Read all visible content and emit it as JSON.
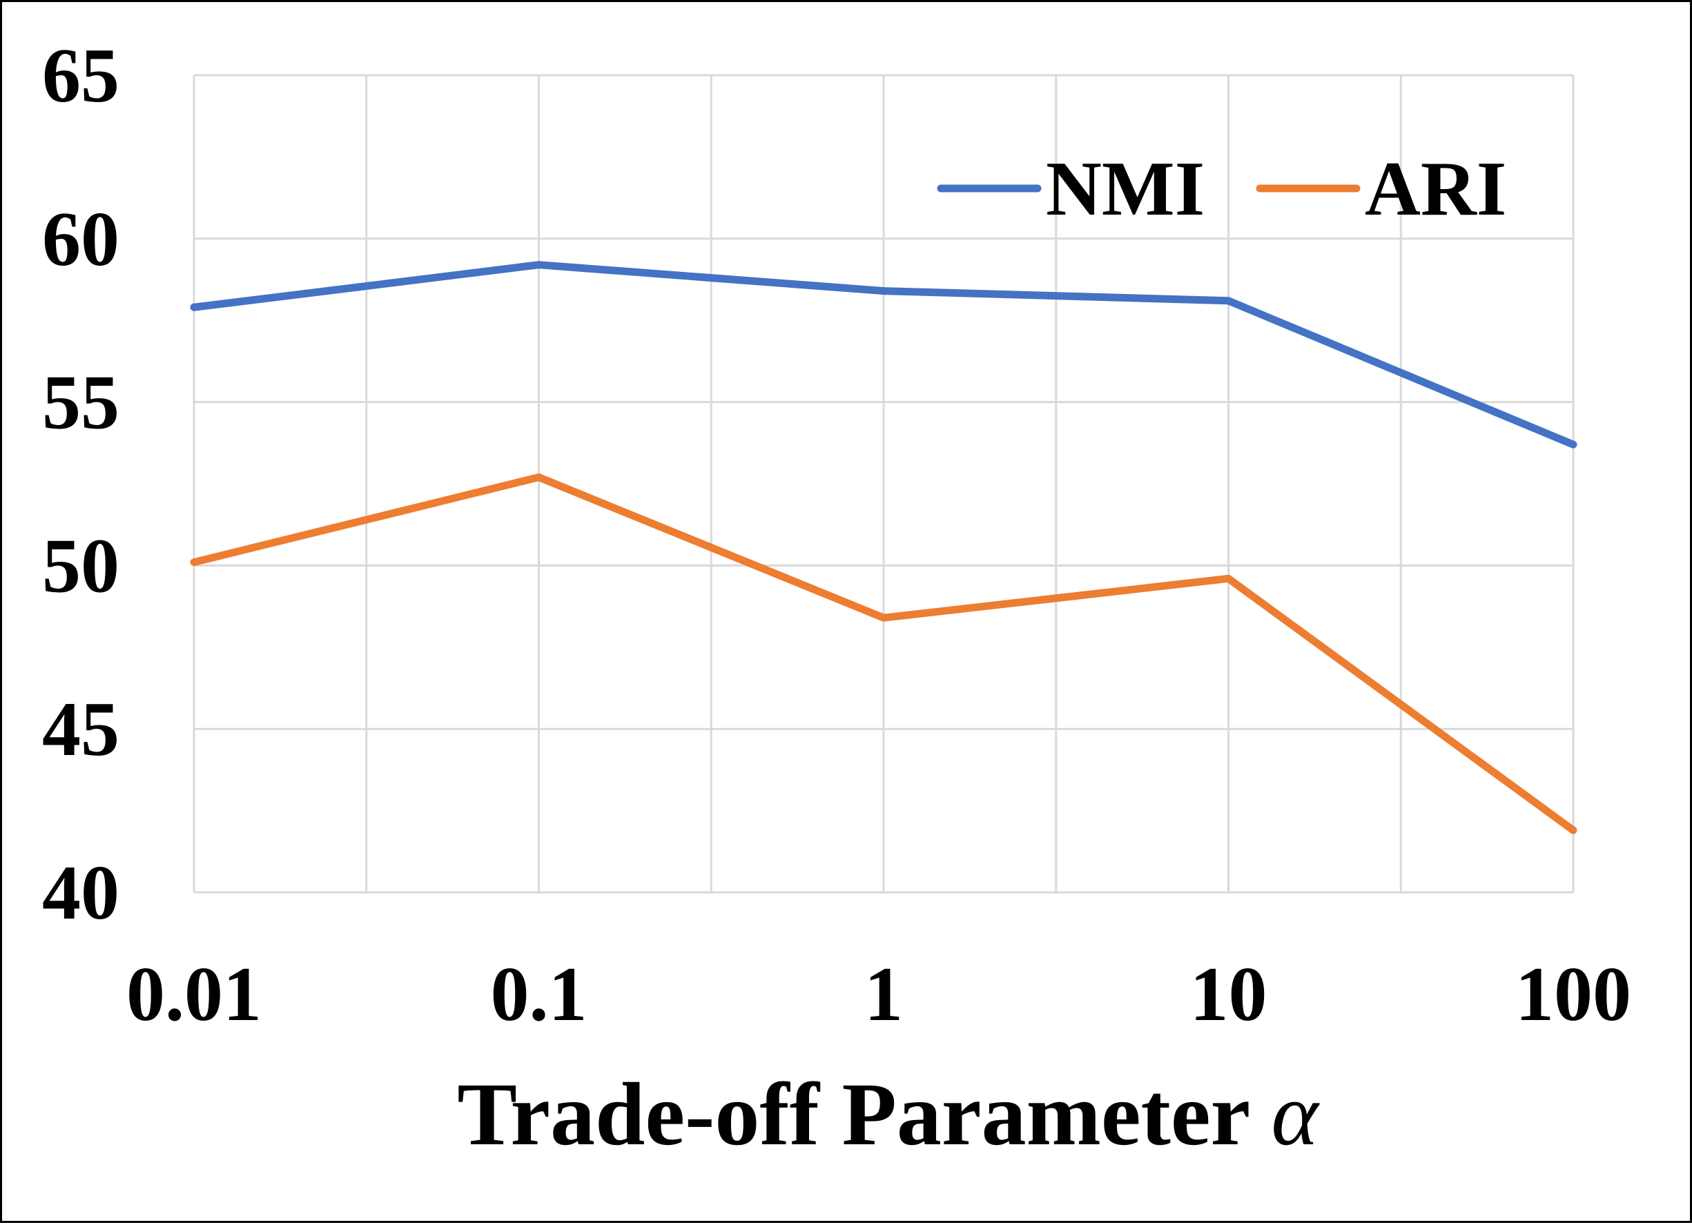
{
  "chart_data": {
    "type": "line",
    "x": [
      "0.01",
      "0.1",
      "1",
      "10",
      "100"
    ],
    "series": [
      {
        "name": "NMI",
        "color": "#4472C4",
        "values": [
          57.9,
          59.2,
          58.4,
          58.1,
          53.7
        ]
      },
      {
        "name": "ARI",
        "color": "#ED7D31",
        "values": [
          50.1,
          52.7,
          48.4,
          49.6,
          41.9
        ]
      }
    ],
    "title": "",
    "xlabel": "Trade-off Parameter",
    "xlabel_symbol": "α",
    "ylabel": "",
    "ylim": [
      40,
      65
    ],
    "yticks": [
      "40",
      "45",
      "50",
      "55",
      "60",
      "65"
    ],
    "grid": true,
    "legend_position": "top-right"
  }
}
